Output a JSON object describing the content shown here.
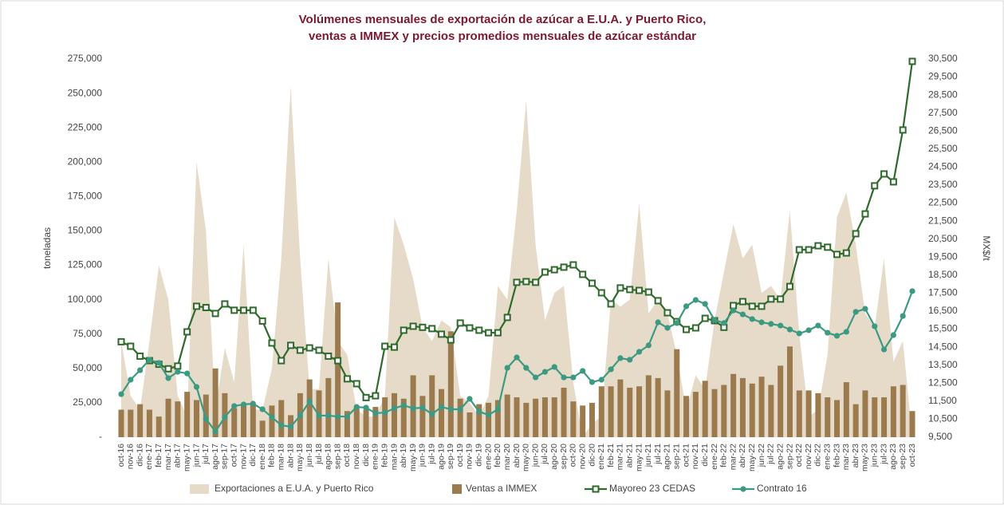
{
  "chart_data": {
    "type": "combo",
    "title": [
      "Volúmenes mensuales de exportación de azúcar a E.U.A. y Puerto Rico,",
      "ventas a IMMEX y precios promedios mensuales de azúcar estándar"
    ],
    "ylabel": "toneladas",
    "y2label": "MX$/t",
    "legend": "bottom",
    "categories": [
      "oct-16",
      "nov-16",
      "dic-16",
      "ene-17",
      "feb-17",
      "mar-17",
      "abr-17",
      "may-17",
      "jun-17",
      "jul-17",
      "ago-17",
      "sep-17",
      "oct-17",
      "nov-17",
      "dic-17",
      "ene-18",
      "feb-18",
      "mar-18",
      "abr-18",
      "may-18",
      "jun-18",
      "jul-18",
      "ago-18",
      "sep-18",
      "oct-18",
      "nov-18",
      "dic-18",
      "ene-19",
      "feb-19",
      "mar-19",
      "abr-19",
      "may-19",
      "jun-19",
      "jul-19",
      "ago-19",
      "sep-19",
      "oct-19",
      "nov-19",
      "dic-19",
      "ene-20",
      "feb-20",
      "mar-20",
      "abr-20",
      "may-20",
      "jun-20",
      "jul-20",
      "ago-20",
      "sep-20",
      "oct-20",
      "nov-20",
      "dic-20",
      "ene-21",
      "feb-21",
      "mar-21",
      "abr-21",
      "may-21",
      "jun-21",
      "jul-21",
      "ago-21",
      "sep-21",
      "oct-21",
      "nov-21",
      "dic-21",
      "ene-22",
      "feb-22",
      "mar-22",
      "abr-22",
      "may-22",
      "jun-22",
      "jul-22",
      "ago-22",
      "sep-22",
      "oct-22",
      "nov-22",
      "dic-22",
      "ene-23",
      "feb-23",
      "mar-23",
      "abr-23",
      "may-23",
      "jun-23",
      "jul-23",
      "ago-23",
      "sep-23",
      "oct-23"
    ],
    "ylim": [
      0,
      275000
    ],
    "yticks": [
      {
        "value": 0,
        "label": "-"
      },
      {
        "value": 25000,
        "label": "25,000"
      },
      {
        "value": 50000,
        "label": "50,000"
      },
      {
        "value": 75000,
        "label": "75,000"
      },
      {
        "value": 100000,
        "label": "100,000"
      },
      {
        "value": 125000,
        "label": "125,000"
      },
      {
        "value": 150000,
        "label": "150,000"
      },
      {
        "value": 175000,
        "label": "175,000"
      },
      {
        "value": 200000,
        "label": "200,000"
      },
      {
        "value": 225000,
        "label": "225,000"
      },
      {
        "value": 250000,
        "label": "250,000"
      },
      {
        "value": 275000,
        "label": "275,000"
      }
    ],
    "y2lim": [
      9500,
      30500
    ],
    "y2ticks": [
      {
        "value": 9500,
        "label": "9,500"
      },
      {
        "value": 10500,
        "label": "10,500"
      },
      {
        "value": 11500,
        "label": "11,500"
      },
      {
        "value": 12500,
        "label": "12,500"
      },
      {
        "value": 13500,
        "label": "13,500"
      },
      {
        "value": 14500,
        "label": "14,500"
      },
      {
        "value": 15500,
        "label": "15,500"
      },
      {
        "value": 16500,
        "label": "16,500"
      },
      {
        "value": 17500,
        "label": "17,500"
      },
      {
        "value": 18500,
        "label": "18,500"
      },
      {
        "value": 19500,
        "label": "19,500"
      },
      {
        "value": 20500,
        "label": "20,500"
      },
      {
        "value": 21500,
        "label": "21,500"
      },
      {
        "value": 22500,
        "label": "22,500"
      },
      {
        "value": 23500,
        "label": "23,500"
      },
      {
        "value": 24500,
        "label": "24,500"
      },
      {
        "value": 25500,
        "label": "25,500"
      },
      {
        "value": 26500,
        "label": "26,500"
      },
      {
        "value": 27500,
        "label": "27,500"
      },
      {
        "value": 28500,
        "label": "28,500"
      },
      {
        "value": 29500,
        "label": "29,500"
      },
      {
        "value": 30500,
        "label": "30,500"
      }
    ],
    "series": [
      {
        "name": "Exportaciones a E.U.A. y Puerto Rico",
        "type": "area",
        "color": "#e6dbc8",
        "values": [
          70000,
          30000,
          20000,
          70000,
          125000,
          100000,
          30000,
          15000,
          200000,
          150000,
          20000,
          65000,
          40000,
          140000,
          20000,
          20000,
          50000,
          130000,
          255000,
          130000,
          35000,
          35000,
          130000,
          70000,
          60000,
          20000,
          15000,
          15000,
          30000,
          160000,
          140000,
          115000,
          80000,
          70000,
          85000,
          80000,
          30000,
          25000,
          15000,
          30000,
          110000,
          100000,
          165000,
          245000,
          140000,
          85000,
          105000,
          110000,
          40000,
          0,
          10000,
          15000,
          100000,
          95000,
          100000,
          170000,
          90000,
          100000,
          90000,
          60000,
          20000,
          45000,
          35000,
          85000,
          120000,
          155000,
          130000,
          140000,
          105000,
          110000,
          100000,
          165000,
          75000,
          15000,
          20000,
          60000,
          160000,
          178000,
          140000,
          90000,
          80000,
          130000,
          55000,
          70000,
          0
        ]
      },
      {
        "name": "Ventas a IMMEX",
        "type": "bar",
        "color": "#9b7a4e",
        "values": [
          20000,
          20000,
          24000,
          20000,
          15000,
          28000,
          26000,
          33000,
          27000,
          31000,
          50000,
          32000,
          21000,
          23000,
          24000,
          12000,
          23000,
          27000,
          16000,
          32000,
          42000,
          34000,
          43000,
          98000,
          19000,
          22000,
          20000,
          22000,
          29000,
          32000,
          28000,
          45000,
          30000,
          45000,
          35000,
          77000,
          28000,
          18000,
          24000,
          25000,
          27000,
          31000,
          29000,
          25000,
          28000,
          29000,
          29000,
          36000,
          26000,
          23000,
          25000,
          37000,
          37000,
          42000,
          36000,
          37000,
          45000,
          43000,
          34000,
          64000,
          30000,
          33000,
          41000,
          35000,
          38000,
          46000,
          43000,
          39000,
          44000,
          38000,
          52000,
          66000,
          34000,
          34000,
          32000,
          29000,
          27000,
          40000,
          24000,
          34000,
          29000,
          29000,
          37000,
          38000,
          19000
        ]
      },
      {
        "name": "Mayoreo 23 CEDAS",
        "type": "line",
        "axis": "y2",
        "marker": "square",
        "color": "#2f6a2c",
        "values": [
          14800,
          14550,
          14000,
          13750,
          13550,
          13300,
          13450,
          15350,
          16770,
          16700,
          16370,
          16900,
          16550,
          16550,
          16550,
          15950,
          14730,
          13750,
          14600,
          14330,
          14460,
          14330,
          14000,
          13750,
          12740,
          12470,
          11700,
          11800,
          14550,
          14500,
          15440,
          15660,
          15600,
          15530,
          15220,
          14900,
          15840,
          15570,
          15440,
          15300,
          15300,
          16150,
          18100,
          18140,
          18100,
          18670,
          18800,
          18940,
          19070,
          18540,
          18050,
          17520,
          16900,
          17790,
          17700,
          17650,
          17560,
          17080,
          16410,
          15920,
          15480,
          15570,
          16100,
          15970,
          15600,
          16810,
          17030,
          16770,
          16770,
          17170,
          17170,
          17870,
          19910,
          19910,
          20130,
          20050,
          19650,
          19730,
          20800,
          21900,
          23460,
          24120,
          23680,
          26560,
          30370
        ]
      },
      {
        "name": "Contrato 16",
        "type": "line",
        "axis": "y2",
        "marker": "circle",
        "color": "#3d9a82",
        "values": [
          11890,
          12690,
          13220,
          13800,
          13620,
          12780,
          13130,
          13040,
          12290,
          10520,
          9810,
          10610,
          11230,
          11320,
          11360,
          11050,
          10610,
          10160,
          10080,
          10700,
          11490,
          10700,
          10700,
          10650,
          10650,
          11180,
          11140,
          10830,
          10870,
          11100,
          11270,
          11100,
          11140,
          10780,
          11180,
          11050,
          11050,
          11630,
          10920,
          10740,
          11050,
          13350,
          13930,
          13350,
          12820,
          13130,
          13400,
          12820,
          12820,
          13180,
          12560,
          12690,
          13270,
          13890,
          13800,
          14240,
          14600,
          15880,
          15570,
          15840,
          16770,
          17120,
          16900,
          16010,
          15840,
          16540,
          16320,
          16060,
          15880,
          15790,
          15700,
          15480,
          15260,
          15440,
          15700,
          15300,
          15130,
          15350,
          16460,
          16630,
          15660,
          14370,
          15170,
          16230,
          17610
        ]
      }
    ]
  }
}
